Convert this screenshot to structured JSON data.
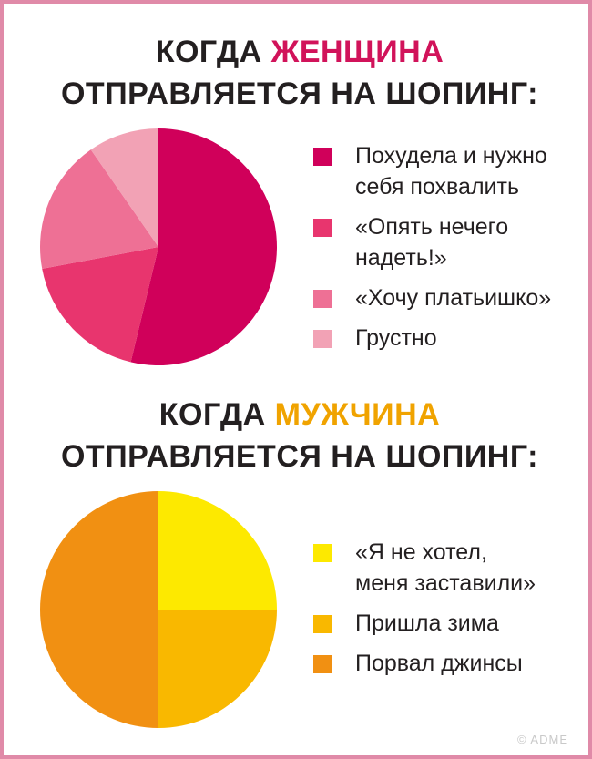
{
  "charts": {
    "women": {
      "title_prefix": "КОГДА ",
      "title_accent": "ЖЕНЩИНА",
      "title_line2": "ОТПРАВЛЯЕТСЯ НА ШОПИНГ:",
      "accent_color": "#d1135a"
    },
    "men": {
      "title_prefix": "КОГДА ",
      "title_accent": "МУЖЧИНА",
      "title_line2": "ОТПРАВЛЯЕТСЯ НА ШОПИНГ:",
      "accent_color": "#f0a300"
    }
  },
  "chart_data": [
    {
      "type": "pie",
      "title": "КОГДА ЖЕНЩИНА ОТПРАВЛЯЕТСЯ НА ШОПИНГ:",
      "legend_placement": "right",
      "slices": [
        {
          "label": "Похудела и нужно\nсебя похвалить",
          "value": 50,
          "color": "#d0005a"
        },
        {
          "label": "«Опять нечего\nнадеть!»",
          "value": 17,
          "color": "#e8356e"
        },
        {
          "label": "«Хочу платьишко»",
          "value": 17,
          "color": "#ee7095"
        },
        {
          "label": "Грустно",
          "value": 9,
          "color": "#f2a2b5"
        }
      ]
    },
    {
      "type": "pie",
      "title": "КОГДА МУЖЧИНА ОТПРАВЛЯЕТСЯ НА ШОПИНГ:",
      "legend_placement": "right",
      "slices": [
        {
          "label": "«Я не хотел,\nменя заставили»",
          "value": 25,
          "color": "#fde900"
        },
        {
          "label": "Пришла зима",
          "value": 25,
          "color": "#f9b800"
        },
        {
          "label": "Порвал джинсы",
          "value": 50,
          "color": "#f19012"
        }
      ]
    }
  ],
  "watermark": "© ADME"
}
